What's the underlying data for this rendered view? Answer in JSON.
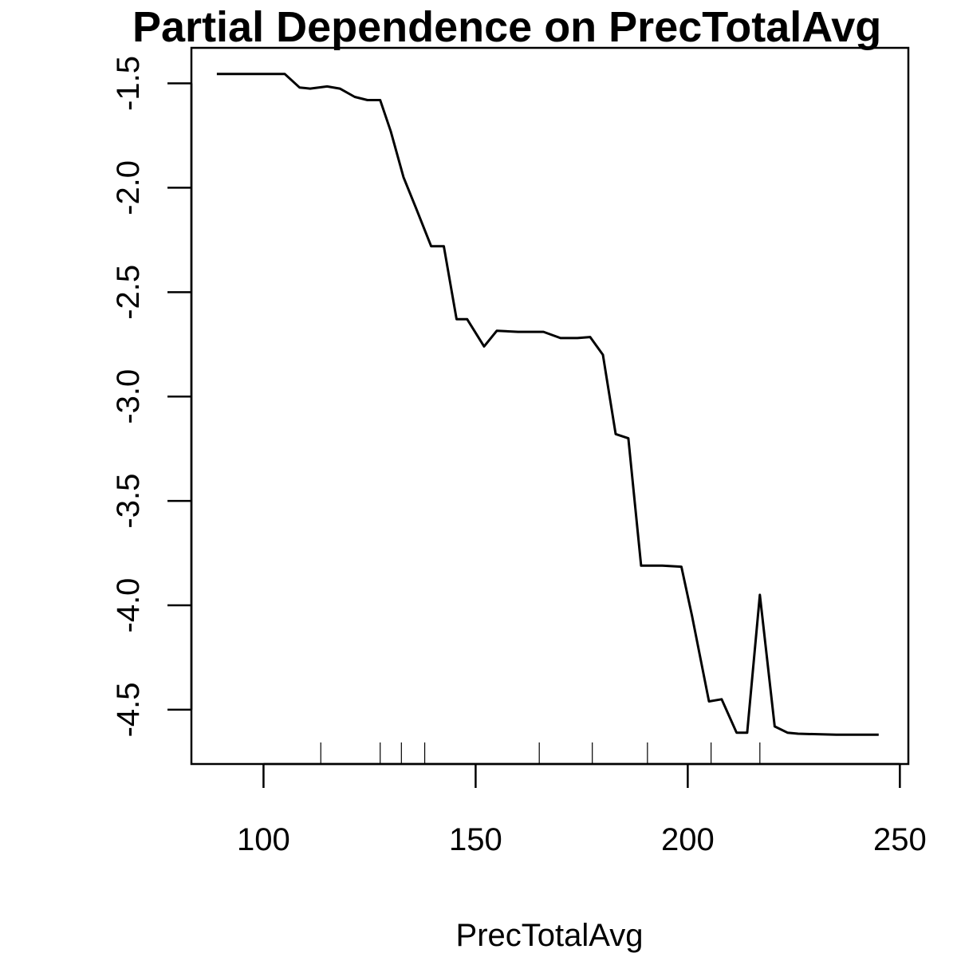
{
  "chart_data": {
    "type": "line",
    "title": "Partial Dependence on PrecTotalAvg",
    "xlabel": "PrecTotalAvg",
    "ylabel": "",
    "xlim": [
      83,
      252
    ],
    "ylim": [
      -4.76,
      -1.33
    ],
    "x_ticks": [
      100,
      150,
      200,
      250
    ],
    "x_tick_labels": [
      "100",
      "150",
      "200",
      "250"
    ],
    "y_ticks": [
      -1.5,
      -2.0,
      -2.5,
      -3.0,
      -3.5,
      -4.0,
      -4.5
    ],
    "y_tick_labels": [
      "-1.5",
      "-2.0",
      "-2.5",
      "-3.0",
      "-3.5",
      "-4.0",
      "-4.5"
    ],
    "grid": false,
    "series": [
      {
        "x": [
          89,
          105,
          108.5,
          111,
          115,
          118,
          121.5,
          124.5,
          127.5,
          130,
          133,
          136,
          139.5,
          142.5,
          145.5,
          148,
          152,
          155,
          160,
          166,
          170,
          174,
          177,
          180,
          183,
          186,
          189,
          194,
          198.5,
          201,
          205,
          208,
          211.5,
          214,
          217,
          220.5,
          223.5,
          226,
          235,
          245
        ],
        "y": [
          -1.455,
          -1.455,
          -1.52,
          -1.525,
          -1.515,
          -1.525,
          -1.565,
          -1.58,
          -1.58,
          -1.73,
          -1.95,
          -2.1,
          -2.28,
          -2.28,
          -2.63,
          -2.63,
          -2.76,
          -2.685,
          -2.69,
          -2.69,
          -2.72,
          -2.72,
          -2.715,
          -2.8,
          -3.18,
          -3.2,
          -3.81,
          -3.81,
          -3.815,
          -4.05,
          -4.46,
          -4.45,
          -4.61,
          -4.61,
          -3.95,
          -4.58,
          -4.61,
          -4.615,
          -4.62,
          -4.62
        ]
      }
    ],
    "rug": [
      113.5,
      127.5,
      132.5,
      138,
      165,
      177.5,
      190.5,
      205.5,
      217
    ]
  }
}
